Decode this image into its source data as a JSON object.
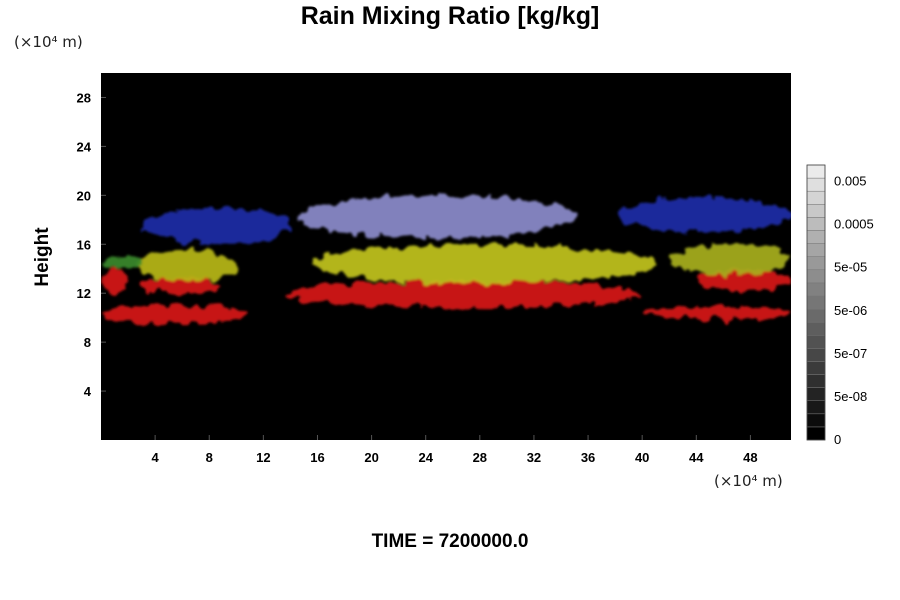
{
  "header": {
    "title": "Rain Mixing Ratio [kg/kg]"
  },
  "axes": {
    "y_unit": "(×10⁴ m)",
    "x_unit": "(×10⁴ m)",
    "ylabel": "Height"
  },
  "footer": {
    "time": "TIME = 7200000.0"
  },
  "chart_data": {
    "type": "heatmap",
    "title": "Rain Mixing Ratio [kg/kg]",
    "xlabel": "",
    "ylabel": "Height",
    "xlim": [
      0,
      51
    ],
    "ylim": [
      0,
      30
    ],
    "x_ticks": [
      4,
      8,
      12,
      16,
      20,
      24,
      28,
      32,
      36,
      40,
      44,
      48
    ],
    "y_ticks": [
      4,
      8,
      12,
      16,
      20,
      24,
      28
    ],
    "grid": false,
    "colorbar": {
      "position": "right",
      "levels": 21,
      "labels": [
        "0",
        "5e-08",
        "5e-07",
        "5e-06",
        "5e-05",
        "0.0005",
        "0.005"
      ]
    },
    "background_color": "#000000",
    "regions": [
      {
        "color": "#d81a1a",
        "x": [
          0,
          11
        ],
        "y": [
          9.5,
          11
        ]
      },
      {
        "color": "#d81a1a",
        "x": [
          0,
          2
        ],
        "y": [
          12,
          14
        ]
      },
      {
        "color": "#d81a1a",
        "x": [
          3,
          9
        ],
        "y": [
          12,
          13.3
        ]
      },
      {
        "color": "#d81a1a",
        "x": [
          13.5,
          40
        ],
        "y": [
          10.8,
          13
        ]
      },
      {
        "color": "#d81a1a",
        "x": [
          40,
          51
        ],
        "y": [
          9.8,
          11
        ]
      },
      {
        "color": "#d81a1a",
        "x": [
          44,
          51
        ],
        "y": [
          12.2,
          14
        ]
      },
      {
        "color": "#b8b818",
        "x": [
          2.5,
          10
        ],
        "y": [
          13,
          15.5
        ]
      },
      {
        "color": "#c2c41c",
        "x": [
          15.5,
          41
        ],
        "y": [
          12.8,
          16
        ]
      },
      {
        "color": "#a8b020",
        "x": [
          42,
          51
        ],
        "y": [
          13.5,
          16
        ]
      },
      {
        "color": "#3a8a2a",
        "x": [
          0,
          3
        ],
        "y": [
          14,
          15
        ]
      },
      {
        "color": "#1e2ea8",
        "x": [
          3,
          14
        ],
        "y": [
          16,
          19
        ]
      },
      {
        "color": "#8c8ccc",
        "x": [
          14.5,
          35
        ],
        "y": [
          16.5,
          20
        ]
      },
      {
        "color": "#1e2ea8",
        "x": [
          38,
          51
        ],
        "y": [
          17,
          19.8
        ]
      }
    ]
  }
}
